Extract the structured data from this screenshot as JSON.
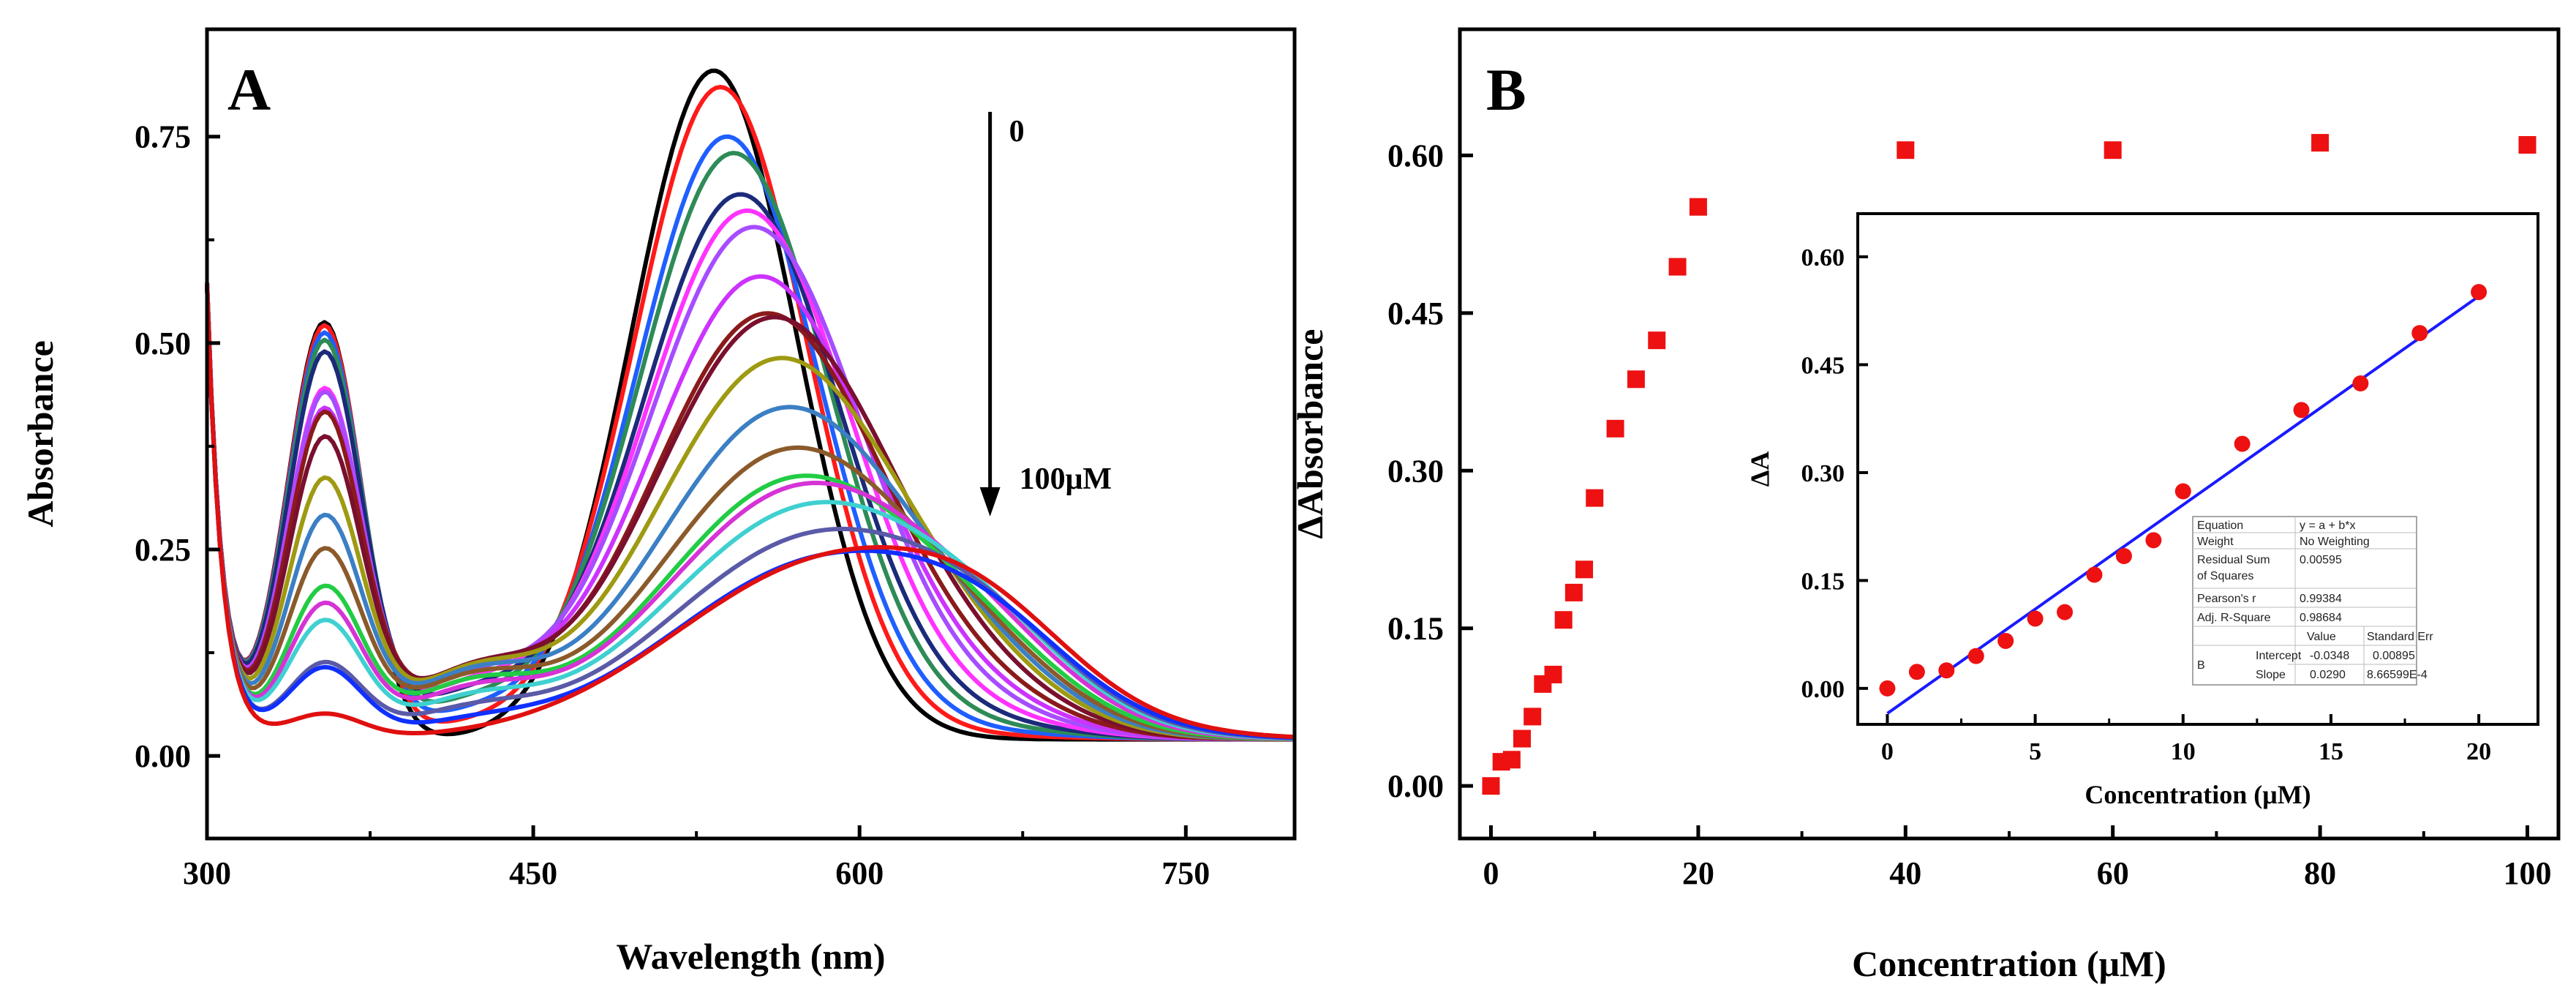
{
  "chart_data": [
    {
      "type": "line",
      "panel_label": "A",
      "xlabel": "Wavelength (nm)",
      "ylabel": "Absorbance",
      "xlim": [
        300,
        800
      ],
      "ylim": [
        -0.1,
        0.88
      ],
      "xticks": [
        300,
        450,
        600,
        750
      ],
      "xtick_labels": [
        "300",
        "450",
        "600",
        "750"
      ],
      "yticks": [
        0.0,
        0.25,
        0.5,
        0.75
      ],
      "ytick_labels": [
        "0.00",
        "0.25",
        "0.50",
        "0.75"
      ],
      "grid": false,
      "annotation_top": "0",
      "annotation_bottom": "100μM",
      "annotation_arrow_wavelength": 660,
      "annotation_arrow_range": [
        0.78,
        0.29
      ],
      "series_colors": [
        "#000000",
        "#ff1a1a",
        "#1f5fff",
        "#2e8b57",
        "#1c2a7a",
        "#ff33ff",
        "#a64dff",
        "#cc33ff",
        "#8b1a1a",
        "#7a0f2e",
        "#9e9a12",
        "#3b7fc4",
        "#8b5a2b",
        "#22cc44",
        "#d633d6",
        "#3fd0d0",
        "#5a5aa8",
        "#1030ff",
        "#e01010"
      ],
      "series_peak_545": [
        0.83,
        0.81,
        0.75,
        0.73,
        0.68,
        0.66,
        0.64,
        0.58,
        0.535,
        0.53,
        0.48,
        0.42,
        0.37,
        0.335,
        0.325,
        0.3,
        0.265,
        0.235,
        0.235
      ],
      "series_peak_355": [
        0.525,
        0.52,
        0.51,
        0.5,
        0.485,
        0.44,
        0.435,
        0.415,
        0.41,
        0.38,
        0.33,
        0.285,
        0.245,
        0.2,
        0.18,
        0.16,
        0.11,
        0.105,
        0.05
      ]
    },
    {
      "type": "scatter",
      "panel_label": "B",
      "xlabel": "Concentration (μM)",
      "ylabel": "ΔAbsorbance",
      "xlim": [
        -3,
        103
      ],
      "ylim": [
        -0.05,
        0.72
      ],
      "xticks": [
        0,
        20,
        40,
        60,
        80,
        100
      ],
      "xtick_labels": [
        "0",
        "20",
        "40",
        "60",
        "80",
        "100"
      ],
      "yticks": [
        0.0,
        0.15,
        0.3,
        0.45,
        0.6
      ],
      "ytick_labels": [
        "0.00",
        "0.15",
        "0.30",
        "0.45",
        "0.60"
      ],
      "marker_color": "#ee1111",
      "x": [
        0,
        1,
        2,
        3,
        4,
        5,
        6,
        7,
        8,
        9,
        10,
        12,
        14,
        16,
        18,
        20,
        40,
        60,
        80,
        100
      ],
      "y": [
        0.0,
        0.023,
        0.025,
        0.045,
        0.066,
        0.097,
        0.106,
        0.158,
        0.184,
        0.206,
        0.274,
        0.34,
        0.387,
        0.424,
        0.494,
        0.551,
        0.605,
        0.605,
        0.612,
        0.61
      ],
      "inset": {
        "type": "scatter",
        "xlabel": "Concentration (μM)",
        "ylabel": "ΔA",
        "xlim": [
          -1,
          22
        ],
        "ylim": [
          -0.05,
          0.66
        ],
        "xticks": [
          0,
          5,
          10,
          15,
          20
        ],
        "xtick_labels": [
          "0",
          "5",
          "10",
          "15",
          "20"
        ],
        "yticks": [
          0.0,
          0.15,
          0.3,
          0.45,
          0.6
        ],
        "ytick_labels": [
          "0.00",
          "0.15",
          "0.30",
          "0.45",
          "0.60"
        ],
        "marker_color": "#ee1111",
        "fit_color": "#1a1aff",
        "x": [
          0,
          1,
          2,
          3,
          4,
          5,
          6,
          7,
          8,
          9,
          10,
          12,
          14,
          16,
          18,
          20
        ],
        "y": [
          0.0,
          0.023,
          0.025,
          0.045,
          0.066,
          0.097,
          0.106,
          0.158,
          0.184,
          0.206,
          0.274,
          0.34,
          0.387,
          0.424,
          0.494,
          0.551
        ],
        "fit": {
          "intercept": -0.0348,
          "slope": 0.029
        },
        "table": {
          "equation_label": "Equation",
          "equation_value": "y = a + b*x",
          "weight_label": "Weight",
          "weight_value": "No Weighting",
          "rss_label_1": "Residual Sum",
          "rss_label_2": "of Squares",
          "rss_value": "0.00595",
          "pearson_label": "Pearson's r",
          "pearson_value": "0.99384",
          "adjr_label": "Adj. R-Square",
          "adjr_value": "0.98684",
          "value_header": "Value",
          "stderr_header": "Standard Err",
          "row_group": "B",
          "intercept_label": "Intercept",
          "intercept_value": "-0.0348",
          "intercept_err": "0.00895",
          "slope_label": "Slope",
          "slope_value": "0.0290",
          "slope_err": "8.66599E-4"
        }
      }
    }
  ]
}
